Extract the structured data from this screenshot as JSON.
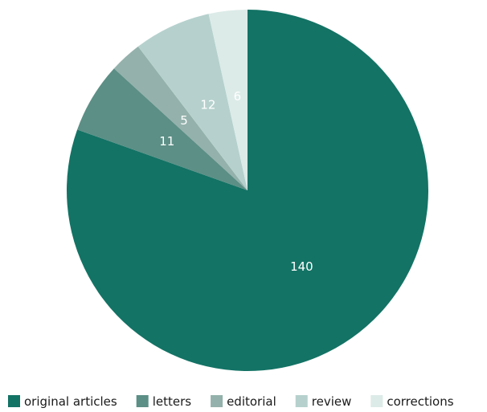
{
  "chart_data": {
    "type": "pie",
    "title": "",
    "slices": [
      {
        "label": "original articles",
        "value": 140,
        "color": "#137365"
      },
      {
        "label": "letters",
        "value": 11,
        "color": "#5c8f86"
      },
      {
        "label": "editorial",
        "value": 5,
        "color": "#94b1ab"
      },
      {
        "label": "review",
        "value": 12,
        "color": "#b6d1cd"
      },
      {
        "label": "corrections",
        "value": 6,
        "color": "#dcebe8"
      }
    ],
    "start_angle": "12 o'clock",
    "direction": "clockwise",
    "legend_position": "bottom"
  }
}
